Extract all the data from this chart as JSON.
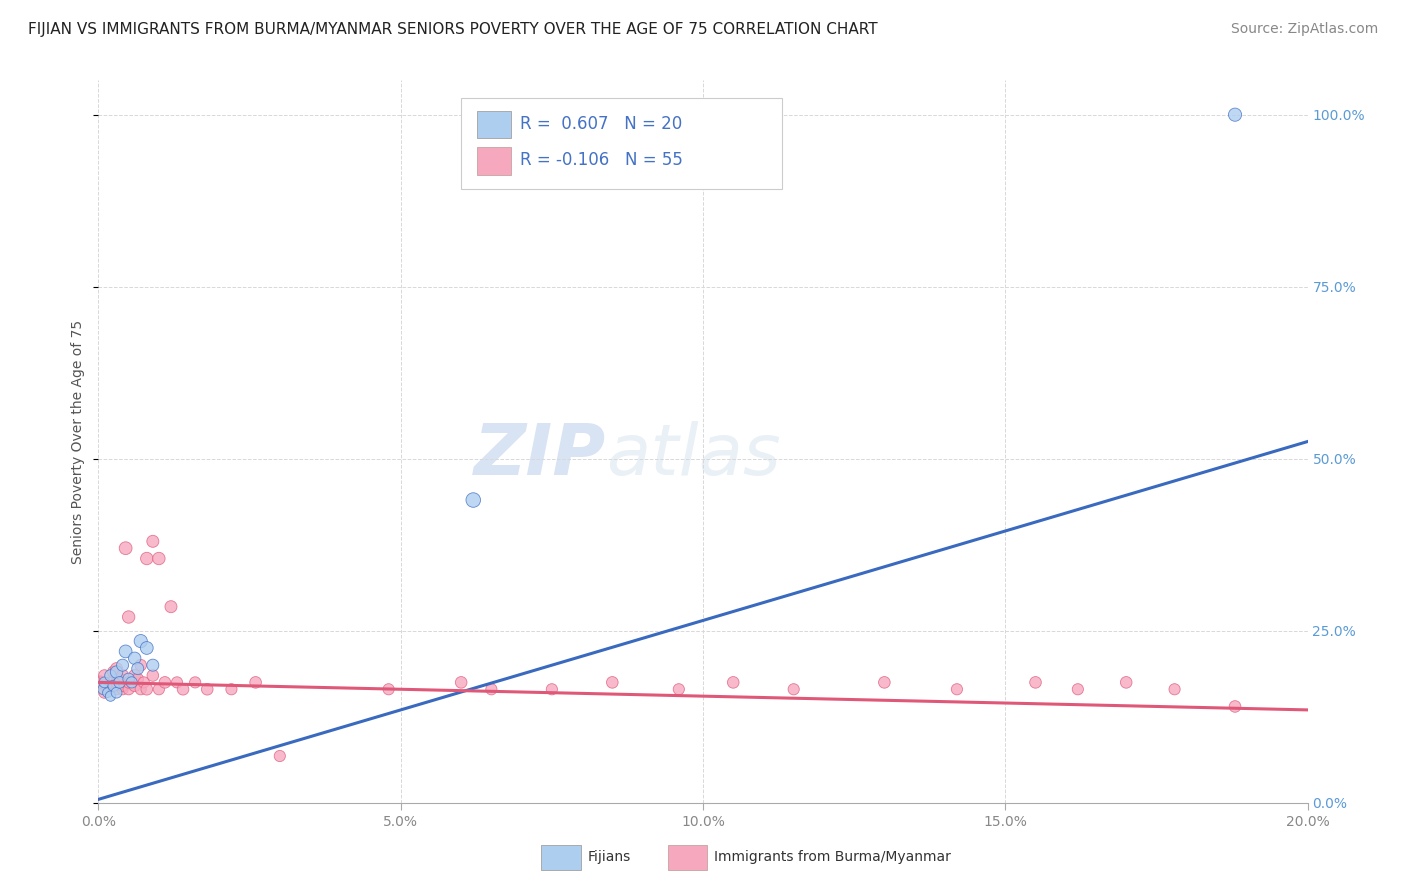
{
  "title": "FIJIAN VS IMMIGRANTS FROM BURMA/MYANMAR SENIORS POVERTY OVER THE AGE OF 75 CORRELATION CHART",
  "source": "Source: ZipAtlas.com",
  "ylabel": "Seniors Poverty Over the Age of 75",
  "xmin": 0.0,
  "xmax": 0.2,
  "ymin": 0.0,
  "ymax": 1.05,
  "xticks": [
    0.0,
    0.05,
    0.1,
    0.15,
    0.2
  ],
  "xticklabels": [
    "0.0%",
    "5.0%",
    "10.0%",
    "15.0%",
    "20.0%"
  ],
  "yticks": [
    0.0,
    0.25,
    0.5,
    0.75,
    1.0
  ],
  "yticklabels": [
    "0.0%",
    "25.0%",
    "50.0%",
    "75.0%",
    "100.0%"
  ],
  "legend_r1": "R =  0.607",
  "legend_n1": "N = 20",
  "legend_r2": "R = -0.106",
  "legend_n2": "N = 55",
  "color_fijian": "#aecef0",
  "color_burma": "#f5a8be",
  "line_color_fijian": "#3a6abf",
  "line_color_burma": "#e05878",
  "watermark_zip": "ZIP",
  "watermark_atlas": "atlas",
  "background_color": "#ffffff",
  "grid_color": "#d8d8d8",
  "title_fontsize": 11,
  "source_fontsize": 10,
  "axis_label_fontsize": 10,
  "tick_fontsize": 10,
  "legend_fontsize": 12,
  "fijians_x": [
    0.0008,
    0.001,
    0.0015,
    0.002,
    0.002,
    0.0025,
    0.003,
    0.003,
    0.0035,
    0.004,
    0.0045,
    0.005,
    0.0055,
    0.006,
    0.0065,
    0.007,
    0.008,
    0.009,
    0.062,
    0.188
  ],
  "fijians_y": [
    0.165,
    0.175,
    0.16,
    0.155,
    0.185,
    0.17,
    0.16,
    0.19,
    0.175,
    0.2,
    0.22,
    0.18,
    0.175,
    0.21,
    0.195,
    0.235,
    0.225,
    0.2,
    0.44,
    1.0
  ],
  "fijians_size": [
    60,
    60,
    50,
    55,
    70,
    65,
    60,
    80,
    70,
    75,
    85,
    70,
    65,
    80,
    75,
    90,
    85,
    75,
    110,
    90
  ],
  "burma_x": [
    0.0002,
    0.0005,
    0.001,
    0.001,
    0.0015,
    0.002,
    0.002,
    0.0025,
    0.003,
    0.003,
    0.003,
    0.0035,
    0.004,
    0.004,
    0.004,
    0.0045,
    0.005,
    0.005,
    0.005,
    0.006,
    0.006,
    0.0065,
    0.007,
    0.007,
    0.0075,
    0.008,
    0.008,
    0.009,
    0.009,
    0.01,
    0.01,
    0.011,
    0.012,
    0.013,
    0.014,
    0.016,
    0.018,
    0.022,
    0.026,
    0.03,
    0.048,
    0.06,
    0.065,
    0.075,
    0.085,
    0.096,
    0.105,
    0.115,
    0.13,
    0.142,
    0.155,
    0.162,
    0.17,
    0.178,
    0.188
  ],
  "burma_y": [
    0.175,
    0.175,
    0.16,
    0.185,
    0.165,
    0.17,
    0.175,
    0.19,
    0.165,
    0.175,
    0.195,
    0.18,
    0.165,
    0.17,
    0.185,
    0.37,
    0.165,
    0.175,
    0.27,
    0.17,
    0.185,
    0.18,
    0.165,
    0.2,
    0.175,
    0.165,
    0.355,
    0.185,
    0.38,
    0.165,
    0.355,
    0.175,
    0.285,
    0.175,
    0.165,
    0.175,
    0.165,
    0.165,
    0.175,
    0.068,
    0.165,
    0.175,
    0.165,
    0.165,
    0.175,
    0.165,
    0.175,
    0.165,
    0.175,
    0.165,
    0.175,
    0.165,
    0.175,
    0.165,
    0.14
  ],
  "burma_size": [
    90,
    75,
    65,
    70,
    65,
    70,
    65,
    75,
    65,
    70,
    75,
    70,
    65,
    70,
    75,
    85,
    65,
    70,
    80,
    70,
    75,
    70,
    65,
    70,
    65,
    70,
    80,
    70,
    75,
    65,
    80,
    70,
    75,
    65,
    70,
    65,
    70,
    65,
    70,
    65,
    65,
    70,
    65,
    65,
    70,
    65,
    70,
    65,
    70,
    65,
    70,
    65,
    70,
    65,
    70
  ],
  "fij_line_x0": 0.0,
  "fij_line_y0": 0.005,
  "fij_line_x1": 0.2,
  "fij_line_y1": 0.525,
  "burma_line_x0": 0.0,
  "burma_line_y0": 0.175,
  "burma_line_x1": 0.2,
  "burma_line_y1": 0.135
}
